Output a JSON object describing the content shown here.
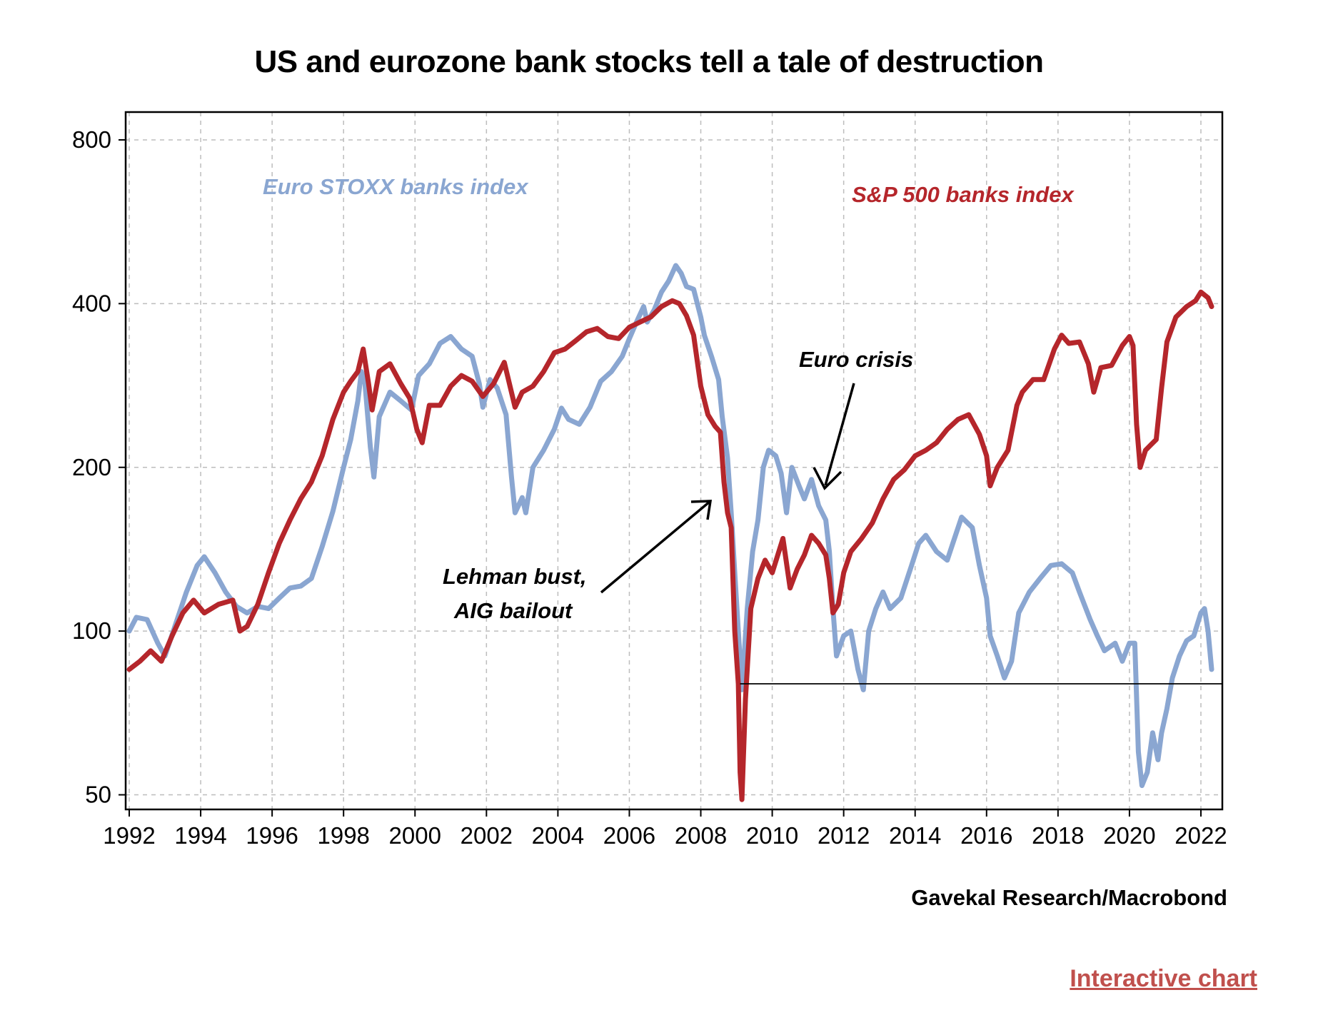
{
  "title": "US and eurozone bank stocks tell a tale of destruction",
  "source": "Gavekal Research/Macrobond",
  "link_text": "Interactive chart",
  "colors": {
    "euro": "#8aa6d1",
    "sp": "#b5262b",
    "grid": "#bdbdbd"
  },
  "chart_data": {
    "type": "line",
    "title": "US and eurozone bank stocks tell a tale of destruction",
    "xlabel": "",
    "ylabel": "",
    "y_scale": "log",
    "xlim": [
      1991.9,
      2022.6
    ],
    "ylim": [
      47,
      900
    ],
    "grid": true,
    "x_ticks": [
      "1992",
      "1994",
      "1996",
      "1998",
      "2000",
      "2002",
      "2004",
      "2006",
      "2008",
      "2010",
      "2012",
      "2014",
      "2016",
      "2018",
      "2020",
      "2022"
    ],
    "y_ticks": [
      50,
      100,
      200,
      400,
      800
    ],
    "y_tick_labels": [
      "50",
      "100",
      "200",
      "400",
      "800"
    ],
    "series": [
      {
        "name": "Euro STOXX banks index",
        "color": "#8aa6d1",
        "points": [
          [
            1992.0,
            100
          ],
          [
            1992.2,
            106
          ],
          [
            1992.5,
            105
          ],
          [
            1992.8,
            95
          ],
          [
            1993.0,
            90
          ],
          [
            1993.3,
            103
          ],
          [
            1993.6,
            118
          ],
          [
            1993.9,
            132
          ],
          [
            1994.1,
            137
          ],
          [
            1994.4,
            128
          ],
          [
            1994.7,
            118
          ],
          [
            1995.0,
            111
          ],
          [
            1995.3,
            108
          ],
          [
            1995.6,
            111
          ],
          [
            1995.9,
            110
          ],
          [
            1996.2,
            115
          ],
          [
            1996.5,
            120
          ],
          [
            1996.8,
            121
          ],
          [
            1997.1,
            125
          ],
          [
            1997.4,
            143
          ],
          [
            1997.7,
            166
          ],
          [
            1998.0,
            200
          ],
          [
            1998.2,
            225
          ],
          [
            1998.4,
            265
          ],
          [
            1998.5,
            300
          ],
          [
            1998.6,
            285
          ],
          [
            1998.75,
            218
          ],
          [
            1998.85,
            192
          ],
          [
            1999.0,
            248
          ],
          [
            1999.3,
            275
          ],
          [
            1999.6,
            265
          ],
          [
            1999.9,
            255
          ],
          [
            2000.1,
            295
          ],
          [
            2000.4,
            310
          ],
          [
            2000.7,
            338
          ],
          [
            2001.0,
            348
          ],
          [
            2001.3,
            330
          ],
          [
            2001.6,
            320
          ],
          [
            2001.8,
            285
          ],
          [
            2001.9,
            258
          ],
          [
            2002.1,
            290
          ],
          [
            2002.3,
            280
          ],
          [
            2002.55,
            250
          ],
          [
            2002.7,
            192
          ],
          [
            2002.8,
            165
          ],
          [
            2003.0,
            176
          ],
          [
            2003.1,
            165
          ],
          [
            2003.3,
            200
          ],
          [
            2003.6,
            215
          ],
          [
            2003.9,
            235
          ],
          [
            2004.1,
            257
          ],
          [
            2004.3,
            245
          ],
          [
            2004.6,
            240
          ],
          [
            2004.9,
            258
          ],
          [
            2005.2,
            288
          ],
          [
            2005.5,
            300
          ],
          [
            2005.8,
            320
          ],
          [
            2006.0,
            345
          ],
          [
            2006.2,
            370
          ],
          [
            2006.4,
            395
          ],
          [
            2006.5,
            370
          ],
          [
            2006.7,
            390
          ],
          [
            2006.9,
            420
          ],
          [
            2007.1,
            440
          ],
          [
            2007.3,
            470
          ],
          [
            2007.45,
            455
          ],
          [
            2007.6,
            430
          ],
          [
            2007.8,
            425
          ],
          [
            2008.0,
            378
          ],
          [
            2008.1,
            350
          ],
          [
            2008.3,
            320
          ],
          [
            2008.5,
            290
          ],
          [
            2008.6,
            248
          ],
          [
            2008.75,
            208
          ],
          [
            2008.85,
            165
          ],
          [
            2008.95,
            128
          ],
          [
            2009.05,
            100
          ],
          [
            2009.15,
            78
          ],
          [
            2009.3,
            110
          ],
          [
            2009.45,
            140
          ],
          [
            2009.6,
            160
          ],
          [
            2009.75,
            200
          ],
          [
            2009.9,
            215
          ],
          [
            2010.1,
            210
          ],
          [
            2010.25,
            195
          ],
          [
            2010.4,
            165
          ],
          [
            2010.55,
            200
          ],
          [
            2010.75,
            185
          ],
          [
            2010.9,
            175
          ],
          [
            2011.1,
            190
          ],
          [
            2011.3,
            170
          ],
          [
            2011.5,
            160
          ],
          [
            2011.6,
            140
          ],
          [
            2011.7,
            110
          ],
          [
            2011.8,
            90
          ],
          [
            2012.0,
            98
          ],
          [
            2012.2,
            100
          ],
          [
            2012.4,
            85
          ],
          [
            2012.55,
            78
          ],
          [
            2012.7,
            100
          ],
          [
            2012.9,
            110
          ],
          [
            2013.1,
            118
          ],
          [
            2013.3,
            110
          ],
          [
            2013.6,
            115
          ],
          [
            2013.9,
            132
          ],
          [
            2014.1,
            145
          ],
          [
            2014.3,
            150
          ],
          [
            2014.6,
            140
          ],
          [
            2014.9,
            135
          ],
          [
            2015.1,
            148
          ],
          [
            2015.3,
            162
          ],
          [
            2015.6,
            155
          ],
          [
            2015.8,
            132
          ],
          [
            2016.0,
            115
          ],
          [
            2016.1,
            98
          ],
          [
            2016.3,
            90
          ],
          [
            2016.5,
            82
          ],
          [
            2016.7,
            88
          ],
          [
            2016.9,
            108
          ],
          [
            2017.2,
            118
          ],
          [
            2017.5,
            125
          ],
          [
            2017.8,
            132
          ],
          [
            2018.1,
            133
          ],
          [
            2018.4,
            128
          ],
          [
            2018.6,
            118
          ],
          [
            2018.9,
            105
          ],
          [
            2019.1,
            98
          ],
          [
            2019.3,
            92
          ],
          [
            2019.6,
            95
          ],
          [
            2019.8,
            88
          ],
          [
            2020.0,
            95
          ],
          [
            2020.15,
            95
          ],
          [
            2020.25,
            60
          ],
          [
            2020.35,
            52
          ],
          [
            2020.5,
            55
          ],
          [
            2020.65,
            65
          ],
          [
            2020.8,
            58
          ],
          [
            2020.9,
            65
          ],
          [
            2021.05,
            72
          ],
          [
            2021.2,
            82
          ],
          [
            2021.4,
            90
          ],
          [
            2021.6,
            96
          ],
          [
            2021.8,
            98
          ],
          [
            2022.0,
            108
          ],
          [
            2022.1,
            110
          ],
          [
            2022.2,
            100
          ],
          [
            2022.3,
            85
          ]
        ]
      },
      {
        "name": "S&P 500 banks index",
        "color": "#b5262b",
        "points": [
          [
            1992.0,
            85
          ],
          [
            1992.3,
            88
          ],
          [
            1992.6,
            92
          ],
          [
            1992.9,
            88
          ],
          [
            1993.2,
            98
          ],
          [
            1993.5,
            108
          ],
          [
            1993.8,
            114
          ],
          [
            1994.1,
            108
          ],
          [
            1994.5,
            112
          ],
          [
            1994.9,
            114
          ],
          [
            1995.1,
            100
          ],
          [
            1995.3,
            102
          ],
          [
            1995.6,
            112
          ],
          [
            1995.9,
            128
          ],
          [
            1996.2,
            145
          ],
          [
            1996.5,
            160
          ],
          [
            1996.8,
            175
          ],
          [
            1997.1,
            188
          ],
          [
            1997.4,
            210
          ],
          [
            1997.7,
            245
          ],
          [
            1998.0,
            275
          ],
          [
            1998.2,
            288
          ],
          [
            1998.4,
            300
          ],
          [
            1998.55,
            330
          ],
          [
            1998.7,
            285
          ],
          [
            1998.8,
            255
          ],
          [
            1999.0,
            300
          ],
          [
            1999.3,
            310
          ],
          [
            1999.6,
            285
          ],
          [
            1999.85,
            268
          ],
          [
            2000.05,
            235
          ],
          [
            2000.2,
            222
          ],
          [
            2000.4,
            260
          ],
          [
            2000.7,
            260
          ],
          [
            2001.0,
            282
          ],
          [
            2001.3,
            295
          ],
          [
            2001.6,
            288
          ],
          [
            2001.9,
            270
          ],
          [
            2002.2,
            285
          ],
          [
            2002.5,
            312
          ],
          [
            2002.8,
            258
          ],
          [
            2003.0,
            275
          ],
          [
            2003.3,
            282
          ],
          [
            2003.6,
            300
          ],
          [
            2003.9,
            325
          ],
          [
            2004.2,
            330
          ],
          [
            2004.5,
            342
          ],
          [
            2004.8,
            355
          ],
          [
            2005.1,
            360
          ],
          [
            2005.4,
            348
          ],
          [
            2005.7,
            345
          ],
          [
            2006.0,
            362
          ],
          [
            2006.3,
            370
          ],
          [
            2006.6,
            378
          ],
          [
            2006.9,
            395
          ],
          [
            2007.2,
            405
          ],
          [
            2007.4,
            400
          ],
          [
            2007.6,
            380
          ],
          [
            2007.8,
            350
          ],
          [
            2008.0,
            282
          ],
          [
            2008.2,
            250
          ],
          [
            2008.4,
            238
          ],
          [
            2008.55,
            232
          ],
          [
            2008.65,
            188
          ],
          [
            2008.75,
            165
          ],
          [
            2008.85,
            155
          ],
          [
            2008.95,
            100
          ],
          [
            2009.05,
            80
          ],
          [
            2009.1,
            55
          ],
          [
            2009.15,
            49
          ],
          [
            2009.25,
            75
          ],
          [
            2009.4,
            110
          ],
          [
            2009.6,
            125
          ],
          [
            2009.8,
            135
          ],
          [
            2010.0,
            128
          ],
          [
            2010.3,
            148
          ],
          [
            2010.5,
            120
          ],
          [
            2010.7,
            130
          ],
          [
            2010.9,
            138
          ],
          [
            2011.1,
            150
          ],
          [
            2011.3,
            145
          ],
          [
            2011.5,
            138
          ],
          [
            2011.6,
            125
          ],
          [
            2011.7,
            108
          ],
          [
            2011.85,
            112
          ],
          [
            2012.0,
            128
          ],
          [
            2012.2,
            140
          ],
          [
            2012.5,
            148
          ],
          [
            2012.8,
            158
          ],
          [
            2013.1,
            175
          ],
          [
            2013.4,
            190
          ],
          [
            2013.7,
            198
          ],
          [
            2014.0,
            210
          ],
          [
            2014.3,
            215
          ],
          [
            2014.6,
            222
          ],
          [
            2014.9,
            235
          ],
          [
            2015.2,
            245
          ],
          [
            2015.5,
            250
          ],
          [
            2015.8,
            230
          ],
          [
            2016.0,
            210
          ],
          [
            2016.1,
            185
          ],
          [
            2016.3,
            200
          ],
          [
            2016.6,
            215
          ],
          [
            2016.85,
            260
          ],
          [
            2017.0,
            275
          ],
          [
            2017.3,
            290
          ],
          [
            2017.6,
            290
          ],
          [
            2017.9,
            330
          ],
          [
            2018.1,
            350
          ],
          [
            2018.3,
            338
          ],
          [
            2018.6,
            340
          ],
          [
            2018.85,
            310
          ],
          [
            2019.0,
            275
          ],
          [
            2019.2,
            305
          ],
          [
            2019.5,
            308
          ],
          [
            2019.8,
            335
          ],
          [
            2020.0,
            348
          ],
          [
            2020.1,
            335
          ],
          [
            2020.2,
            240
          ],
          [
            2020.3,
            200
          ],
          [
            2020.45,
            215
          ],
          [
            2020.6,
            220
          ],
          [
            2020.75,
            225
          ],
          [
            2020.9,
            280
          ],
          [
            2021.05,
            340
          ],
          [
            2021.3,
            378
          ],
          [
            2021.6,
            395
          ],
          [
            2021.85,
            405
          ],
          [
            2022.0,
            420
          ],
          [
            2022.1,
            415
          ],
          [
            2022.2,
            410
          ],
          [
            2022.3,
            395
          ]
        ]
      }
    ],
    "reference_line": {
      "y": 80,
      "x_start": 2009.1,
      "x_end": 2022.6
    },
    "annotations": [
      {
        "id": "euro-label",
        "text": "Euro STOXX banks index"
      },
      {
        "id": "sp-label",
        "text": "S&P 500 banks index"
      },
      {
        "id": "euro-crisis",
        "text": "Euro crisis"
      },
      {
        "id": "lehman-1",
        "text": "Lehman bust,"
      },
      {
        "id": "lehman-2",
        "text": "AIG bailout"
      }
    ]
  }
}
